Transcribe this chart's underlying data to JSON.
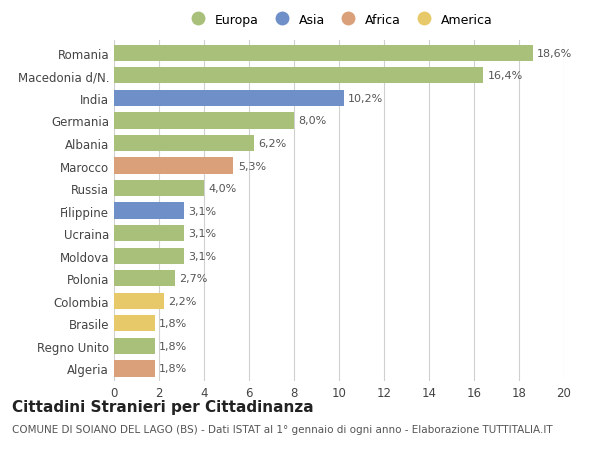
{
  "categories": [
    "Romania",
    "Macedonia d/N.",
    "India",
    "Germania",
    "Albania",
    "Marocco",
    "Russia",
    "Filippine",
    "Ucraina",
    "Moldova",
    "Polonia",
    "Colombia",
    "Brasile",
    "Regno Unito",
    "Algeria"
  ],
  "values": [
    18.6,
    16.4,
    10.2,
    8.0,
    6.2,
    5.3,
    4.0,
    3.1,
    3.1,
    3.1,
    2.7,
    2.2,
    1.8,
    1.8,
    1.8
  ],
  "continents": [
    "Europa",
    "Europa",
    "Asia",
    "Europa",
    "Europa",
    "Africa",
    "Europa",
    "Asia",
    "Europa",
    "Europa",
    "Europa",
    "America",
    "America",
    "Europa",
    "Africa"
  ],
  "labels": [
    "18,6%",
    "16,4%",
    "10,2%",
    "8,0%",
    "6,2%",
    "5,3%",
    "4,0%",
    "3,1%",
    "3,1%",
    "3,1%",
    "2,7%",
    "2,2%",
    "1,8%",
    "1,8%",
    "1,8%"
  ],
  "continent_colors": {
    "Europa": "#a8c07a",
    "Asia": "#6e8fc7",
    "Africa": "#d9a07a",
    "America": "#e8c96a"
  },
  "legend_order": [
    "Europa",
    "Asia",
    "Africa",
    "America"
  ],
  "title": "Cittadini Stranieri per Cittadinanza",
  "subtitle": "COMUNE DI SOIANO DEL LAGO (BS) - Dati ISTAT al 1° gennaio di ogni anno - Elaborazione TUTTITALIA.IT",
  "xlim": [
    0,
    20
  ],
  "xticks": [
    0,
    2,
    4,
    6,
    8,
    10,
    12,
    14,
    16,
    18,
    20
  ],
  "background_color": "#ffffff",
  "grid_color": "#d0d0d0",
  "bar_height": 0.72,
  "title_fontsize": 11,
  "subtitle_fontsize": 7.5,
  "label_fontsize": 8,
  "tick_fontsize": 8.5,
  "legend_fontsize": 9
}
